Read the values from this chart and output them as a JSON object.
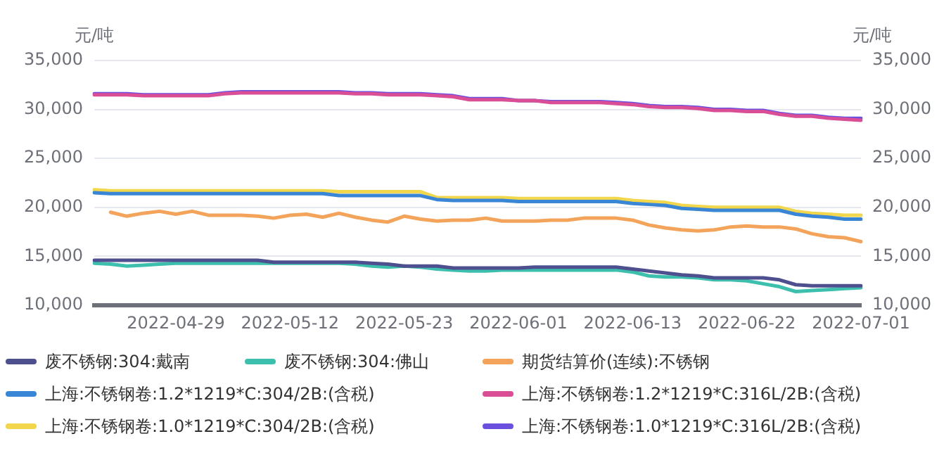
{
  "chart_data": {
    "type": "line",
    "ylabel": "元/吨",
    "y2label": "元/吨",
    "marker": "none",
    "grid": "y",
    "legend": "bottom",
    "categories": [
      null,
      null,
      null,
      null,
      null,
      "2022-04-29",
      null,
      null,
      null,
      null,
      null,
      null,
      "2022-05-12",
      null,
      null,
      null,
      null,
      null,
      null,
      "2022-05-23",
      null,
      null,
      null,
      null,
      null,
      null,
      "2022-06-01",
      null,
      null,
      null,
      null,
      null,
      null,
      "2022-06-13",
      null,
      null,
      null,
      null,
      null,
      null,
      "2022-06-22",
      null,
      null,
      null,
      null,
      null,
      null,
      "2022-07-01"
    ],
    "ylim": [
      10000,
      35000
    ],
    "yticks": [
      {
        "value": 10000,
        "label": "10,000"
      },
      {
        "value": 15000,
        "label": "15,000"
      },
      {
        "value": 20000,
        "label": "20,000"
      },
      {
        "value": 25000,
        "label": "25,000"
      },
      {
        "value": 30000,
        "label": "30,000"
      },
      {
        "value": 35000,
        "label": "35,000"
      }
    ],
    "y2lim": [
      10000,
      35000
    ],
    "y2ticks": [
      {
        "value": 10000,
        "label": "10,000"
      },
      {
        "value": 15000,
        "label": "15,000"
      },
      {
        "value": 20000,
        "label": "20,000"
      },
      {
        "value": 25000,
        "label": "25,000"
      },
      {
        "value": 30000,
        "label": "30,000"
      },
      {
        "value": 35000,
        "label": "35,000"
      }
    ],
    "series": [
      {
        "name": "废不锈钢:304:戴南",
        "color": "#4e4f8e",
        "values": [
          14600,
          14600,
          14600,
          14600,
          14600,
          14600,
          14600,
          14600,
          14600,
          14600,
          14600,
          14400,
          14400,
          14400,
          14400,
          14400,
          14400,
          14300,
          14200,
          14000,
          14000,
          14000,
          13800,
          13800,
          13800,
          13800,
          13800,
          13900,
          13900,
          13900,
          13900,
          13900,
          13900,
          13700,
          13500,
          13300,
          13100,
          13000,
          12800,
          12800,
          12800,
          12800,
          12600,
          12100,
          12000,
          12000,
          12000,
          12000
        ]
      },
      {
        "name": "废不锈钢:304:佛山",
        "color": "#3dbfae",
        "values": [
          14300,
          14200,
          14000,
          14100,
          14200,
          14300,
          14300,
          14300,
          14300,
          14300,
          14300,
          14300,
          14300,
          14300,
          14300,
          14300,
          14200,
          14000,
          13900,
          14000,
          13900,
          13700,
          13600,
          13500,
          13500,
          13600,
          13600,
          13600,
          13600,
          13600,
          13600,
          13600,
          13600,
          13400,
          13000,
          12900,
          12900,
          12800,
          12600,
          12600,
          12500,
          12200,
          11900,
          11400,
          11500,
          11600,
          11700,
          11800
        ]
      },
      {
        "name": "期货结算价(连续):不锈钢",
        "color": "#f3a45a",
        "values": [
          null,
          19500,
          19100,
          19400,
          19600,
          19300,
          19600,
          19200,
          19200,
          19200,
          19100,
          18900,
          19200,
          19300,
          19000,
          19400,
          19000,
          18700,
          18500,
          19100,
          18800,
          18600,
          18700,
          18700,
          18900,
          18600,
          18600,
          18600,
          18700,
          18700,
          18900,
          18900,
          18900,
          18700,
          18200,
          17900,
          17700,
          17600,
          17700,
          18000,
          18100,
          18000,
          18000,
          17800,
          17300,
          17000,
          16900,
          16500
        ]
      },
      {
        "name": "上海:不锈钢卷:1.2*1219*C:304/2B:(含税)",
        "color": "#3a86d6",
        "values": [
          21500,
          21400,
          21400,
          21400,
          21400,
          21400,
          21400,
          21400,
          21400,
          21400,
          21400,
          21400,
          21400,
          21400,
          21400,
          21200,
          21200,
          21200,
          21200,
          21200,
          21200,
          20800,
          20700,
          20700,
          20700,
          20700,
          20600,
          20600,
          20600,
          20600,
          20600,
          20600,
          20600,
          20400,
          20300,
          20200,
          19900,
          19800,
          19700,
          19700,
          19700,
          19700,
          19700,
          19300,
          19100,
          19000,
          18800,
          18800
        ]
      },
      {
        "name": "上海:不锈钢卷:1.2*1219*C:316L/2B:(含税)",
        "color": "#da4e96",
        "values": [
          31500,
          31500,
          31500,
          31400,
          31400,
          31400,
          31400,
          31400,
          31600,
          31700,
          31700,
          31700,
          31700,
          31700,
          31700,
          31700,
          31600,
          31600,
          31500,
          31500,
          31500,
          31400,
          31300,
          31000,
          31000,
          31000,
          30900,
          30900,
          30700,
          30700,
          30700,
          30700,
          30600,
          30500,
          30300,
          30200,
          30200,
          30100,
          29900,
          29900,
          29800,
          29800,
          29500,
          29300,
          29300,
          29100,
          29000,
          28900
        ]
      },
      {
        "name": "上海:不锈钢卷:1.0*1219*C:304/2B:(含税)",
        "color": "#f2d64b",
        "values": [
          21800,
          21700,
          21700,
          21700,
          21700,
          21700,
          21700,
          21700,
          21700,
          21700,
          21700,
          21700,
          21700,
          21700,
          21700,
          21600,
          21600,
          21600,
          21600,
          21600,
          21600,
          21000,
          21000,
          21000,
          21000,
          21000,
          20900,
          20900,
          20900,
          20900,
          20900,
          20900,
          20900,
          20700,
          20600,
          20500,
          20200,
          20100,
          20000,
          20000,
          20000,
          20000,
          20000,
          19600,
          19400,
          19300,
          19200,
          19200
        ]
      },
      {
        "name": "上海:不锈钢卷:1.0*1219*C:316L/2B:(含税)",
        "color": "#6b50e0",
        "values": [
          31600,
          31600,
          31600,
          31500,
          31500,
          31500,
          31500,
          31500,
          31700,
          31800,
          31800,
          31800,
          31800,
          31800,
          31800,
          31800,
          31700,
          31700,
          31600,
          31600,
          31600,
          31500,
          31400,
          31100,
          31100,
          31100,
          30900,
          30900,
          30800,
          30800,
          30800,
          30800,
          30700,
          30600,
          30400,
          30300,
          30300,
          30200,
          30000,
          30000,
          29900,
          29900,
          29600,
          29400,
          29400,
          29200,
          29100,
          29100
        ]
      }
    ]
  }
}
